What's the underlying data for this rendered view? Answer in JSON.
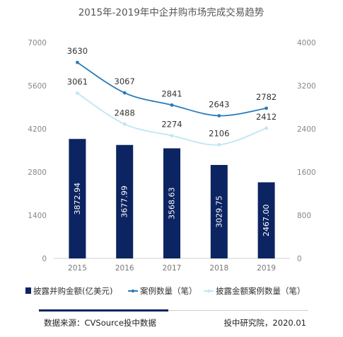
{
  "chart_data": {
    "type": "bar",
    "title": "2015年-2019年中企并购市场完成交易趋势",
    "categories": [
      "2015",
      "2016",
      "2017",
      "2018",
      "2019"
    ],
    "y_left": {
      "range": [
        0,
        7000
      ],
      "ticks": [
        "0",
        "1400",
        "2800",
        "4200",
        "5600",
        "7000"
      ]
    },
    "y_right": {
      "range": [
        0,
        4000
      ],
      "ticks": [
        "0",
        "800",
        "1600",
        "2400",
        "3200",
        "4000"
      ]
    },
    "series": [
      {
        "name": "披露并购金额(亿美元)",
        "kind": "bar",
        "axis": "left",
        "color": "#0c2461",
        "values": [
          3872.94,
          3677.99,
          3568.63,
          3029.75,
          2467.0
        ],
        "labels": [
          "3872.94",
          "3677.99",
          "3568.63",
          "3029.75",
          "2467.00"
        ]
      },
      {
        "name": "案例数量（笔）",
        "kind": "line",
        "axis": "right",
        "color": "#2b7bb9",
        "values": [
          3630,
          3067,
          2841,
          2643,
          2782
        ],
        "labels": [
          "3630",
          "3067",
          "2841",
          "2643",
          "2782"
        ]
      },
      {
        "name": "披露金额案例数量（笔）",
        "kind": "line",
        "axis": "right",
        "color": "#bfe6f3",
        "values": [
          3061,
          2488,
          2274,
          2106,
          2412
        ],
        "labels": [
          "3061",
          "2488",
          "2274",
          "2106",
          "2412"
        ]
      }
    ],
    "legend_position": "bottom",
    "grid": false
  },
  "footer": {
    "source": "数据来源：CVSource投中数据",
    "publisher": "投中研究院，2020.01"
  },
  "colors": {
    "bar": "#0c2461",
    "line_dark": "#2b7bb9",
    "line_light": "#bfe6f3",
    "axis_text": "#888888",
    "footer_bar": "#0c2461"
  }
}
